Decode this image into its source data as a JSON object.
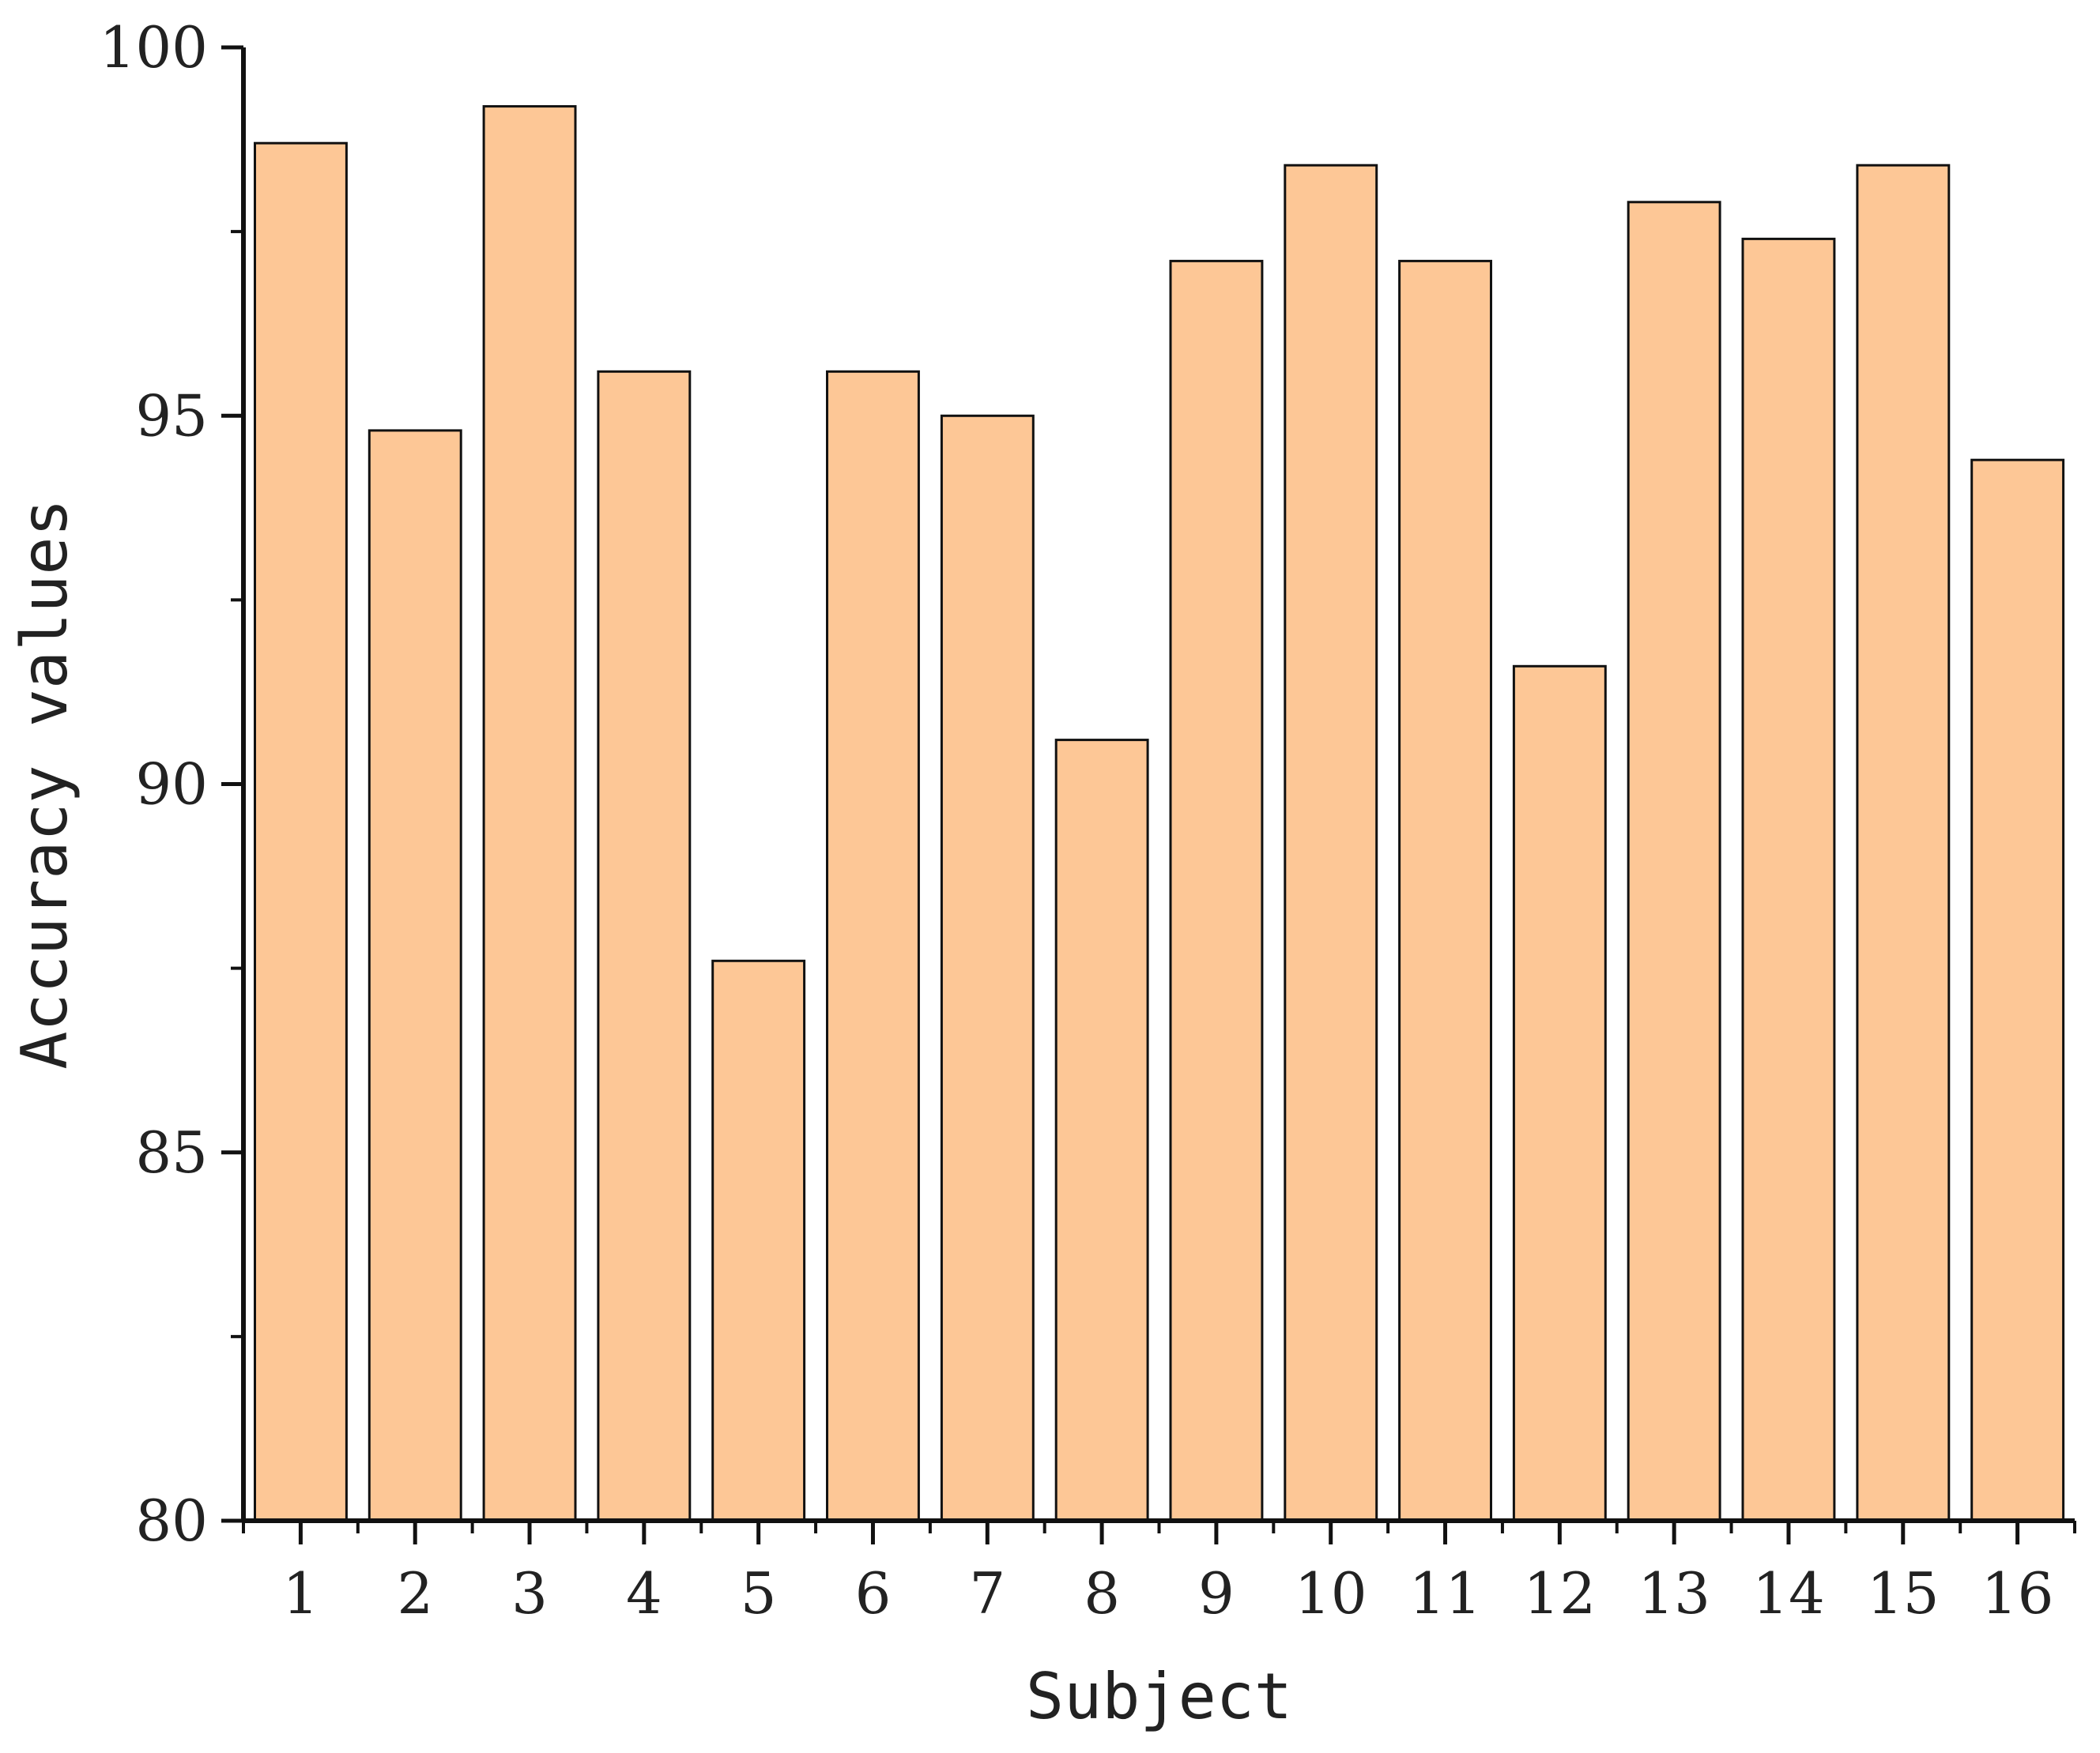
{
  "chart_data": {
    "type": "bar",
    "title": "",
    "xlabel": "Subject",
    "ylabel": "Accuracy values",
    "categories": [
      "1",
      "2",
      "3",
      "4",
      "5",
      "6",
      "7",
      "8",
      "9",
      "10",
      "11",
      "12",
      "13",
      "14",
      "15",
      "16"
    ],
    "values": [
      98.7,
      94.8,
      99.2,
      95.6,
      87.6,
      95.6,
      95.0,
      90.6,
      97.1,
      98.4,
      97.1,
      91.6,
      97.9,
      97.4,
      98.4,
      94.4
    ],
    "ylim": [
      80,
      100
    ],
    "yticks": [
      80,
      85,
      90,
      95,
      100
    ],
    "grid": false,
    "colors": {
      "bar_fill": "#fdc796",
      "bar_stroke": "#111111",
      "axis": "#111111"
    }
  }
}
